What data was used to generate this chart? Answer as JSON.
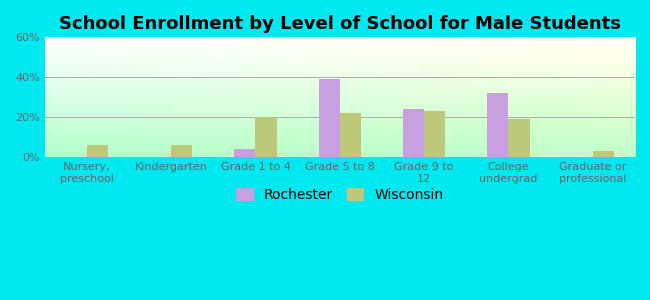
{
  "title": "School Enrollment by Level of School for Male Students",
  "categories": [
    "Nursery,\npreschool",
    "Kindergarten",
    "Grade 1 to 4",
    "Grade 5 to 8",
    "Grade 9 to\n12",
    "College\nundergrad",
    "Graduate or\nprofessional"
  ],
  "rochester": [
    0,
    0,
    4,
    39,
    24,
    32,
    0
  ],
  "wisconsin": [
    6,
    6,
    20,
    22,
    23,
    19,
    3
  ],
  "rochester_color": "#c8a0e0",
  "wisconsin_color": "#bec87a",
  "background_color": "#00e8f0",
  "ylim": [
    0,
    60
  ],
  "yticks": [
    0,
    20,
    40,
    60
  ],
  "ytick_labels": [
    "0%",
    "20%",
    "40%",
    "60%"
  ],
  "legend_labels": [
    "Rochester",
    "Wisconsin"
  ],
  "title_fontsize": 13,
  "tick_fontsize": 8,
  "legend_fontsize": 10,
  "bar_width": 0.25
}
